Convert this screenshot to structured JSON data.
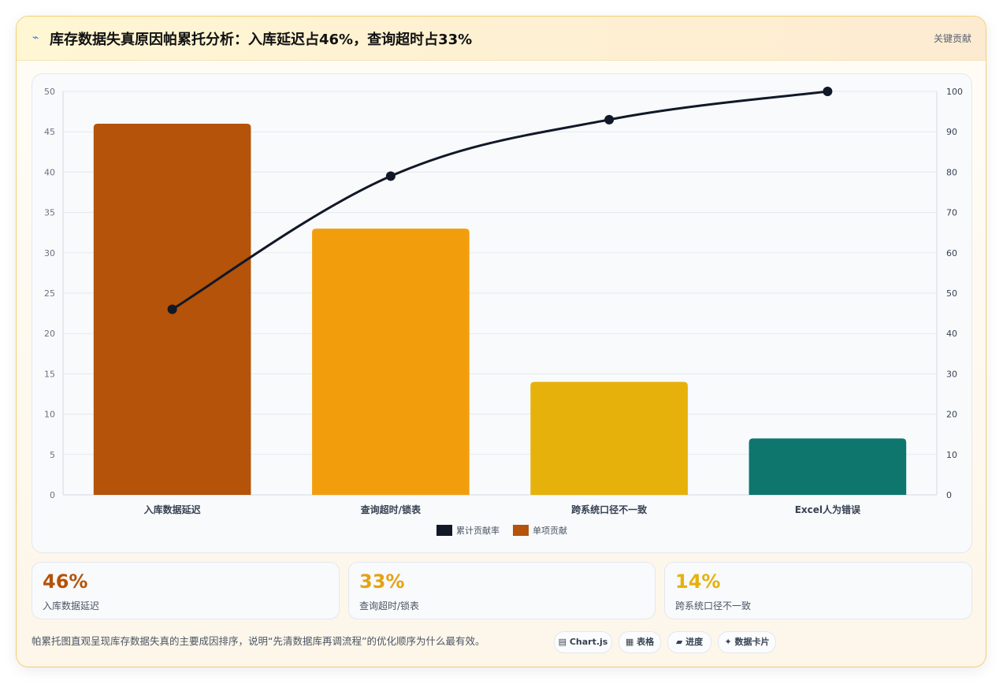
{
  "header": {
    "icon": "⌁",
    "title": "库存数据失真原因帕累托分析：入库延迟占46%，查询超时占33%",
    "right_label": "关键贡献"
  },
  "chart_data": {
    "type": "bar",
    "categories": [
      "入库数据延迟",
      "查询超时/锁表",
      "跨系统口径不一致",
      "Excel人为错误"
    ],
    "series": [
      {
        "name": "单项贡献",
        "type": "bar",
        "values": [
          46,
          33,
          14,
          7
        ],
        "colors": [
          "#b45309",
          "#f29e0c",
          "#e6b10a",
          "#0f766e"
        ]
      },
      {
        "name": "累计贡献率",
        "type": "line",
        "values": [
          46,
          79,
          93,
          100
        ],
        "color": "#111827"
      }
    ],
    "y_left": {
      "ylim": [
        0,
        50
      ],
      "ticks": [
        "0",
        "5",
        "10",
        "15",
        "20",
        "25",
        "30",
        "35",
        "40",
        "45",
        "50"
      ]
    },
    "y_right": {
      "ylim": [
        0,
        100
      ],
      "ticks": [
        "0",
        "10",
        "20",
        "30",
        "40",
        "50",
        "60",
        "70",
        "80",
        "90",
        "100"
      ]
    },
    "legend": [
      {
        "label": "累计贡献率",
        "color": "#111827"
      },
      {
        "label": "单项贡献",
        "color": "#b45309"
      }
    ],
    "legend_position": "bottom",
    "grid": true
  },
  "stats": [
    {
      "value": "46%",
      "label": "入库数据延迟",
      "color": "#b45309"
    },
    {
      "value": "33%",
      "label": "查询超时/锁表",
      "color": "#e6a212"
    },
    {
      "value": "14%",
      "label": "跨系统口径不一致",
      "color": "#e6b10a"
    }
  ],
  "footer": {
    "note": "帕累托图直观呈现库存数据失真的主要成因排序，说明“先清数据库再调流程”的优化顺序为什么最有效。",
    "chips": [
      "▤ Chart.js",
      "▦ 表格",
      "▰ 进度",
      "✦ 数据卡片"
    ]
  }
}
